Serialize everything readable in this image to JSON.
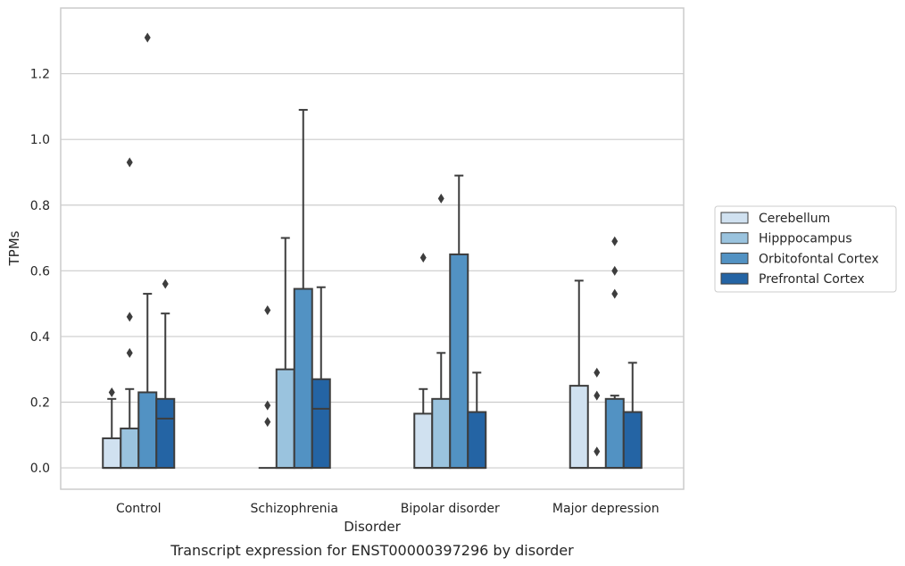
{
  "chart_data": {
    "type": "box",
    "title": "",
    "caption": "Transcript expression for ENST00000397296 by disorder",
    "xlabel": "Disorder",
    "ylabel": "TPMs",
    "ylim": [
      -0.065,
      1.4
    ],
    "y_ticks": [
      0.0,
      0.2,
      0.4,
      0.6,
      0.8,
      1.0,
      1.2
    ],
    "y_tick_labels": [
      "0.0",
      "0.2",
      "0.4",
      "0.6",
      "0.8",
      "1.0",
      "1.2"
    ],
    "grid": "horizontal",
    "legend_position": "right",
    "categories": [
      "Control",
      "Schizophrenia",
      "Bipolar disorder",
      "Major depression"
    ],
    "series": [
      {
        "name": "Cerebellum",
        "color": "#d0e1f0",
        "boxes": [
          {
            "q1": 0.0,
            "median": 0.0,
            "q3": 0.09,
            "whisker_low": 0.0,
            "whisker_high": 0.21,
            "outliers": [
              0.23
            ]
          },
          {
            "q1": 0.0,
            "median": 0.0,
            "q3": 0.0,
            "whisker_low": 0.0,
            "whisker_high": 0.0,
            "outliers": [
              0.48,
              0.19,
              0.14
            ]
          },
          {
            "q1": 0.0,
            "median": 0.0,
            "q3": 0.165,
            "whisker_low": 0.0,
            "whisker_high": 0.24,
            "outliers": [
              0.64
            ]
          },
          {
            "q1": 0.0,
            "median": 0.0,
            "q3": 0.25,
            "whisker_low": 0.0,
            "whisker_high": 0.57,
            "outliers": []
          }
        ]
      },
      {
        "name": "Hipppocampus",
        "color": "#9ac3de",
        "boxes": [
          {
            "q1": 0.0,
            "median": 0.0,
            "q3": 0.12,
            "whisker_low": 0.0,
            "whisker_high": 0.24,
            "outliers": [
              0.35,
              0.46,
              0.93
            ]
          },
          {
            "q1": 0.0,
            "median": 0.0,
            "q3": 0.3,
            "whisker_low": 0.0,
            "whisker_high": 0.7,
            "outliers": []
          },
          {
            "q1": 0.0,
            "median": 0.0,
            "q3": 0.21,
            "whisker_low": 0.0,
            "whisker_high": 0.35,
            "outliers": [
              0.82
            ]
          },
          {
            "q1": 0.0,
            "median": 0.0,
            "q3": 0.0,
            "whisker_low": 0.0,
            "whisker_high": 0.0,
            "outliers": [
              0.05,
              0.22,
              0.29
            ]
          }
        ]
      },
      {
        "name": "Orbitofontal Cortex",
        "color": "#5292c3",
        "boxes": [
          {
            "q1": 0.0,
            "median": 0.0,
            "q3": 0.23,
            "whisker_low": 0.0,
            "whisker_high": 0.53,
            "outliers": [
              1.31
            ]
          },
          {
            "q1": 0.0,
            "median": 0.0,
            "q3": 0.545,
            "whisker_low": 0.0,
            "whisker_high": 1.09,
            "outliers": []
          },
          {
            "q1": 0.0,
            "median": 0.0,
            "q3": 0.65,
            "whisker_low": 0.0,
            "whisker_high": 0.89,
            "outliers": []
          },
          {
            "q1": 0.0,
            "median": 0.0,
            "q3": 0.21,
            "whisker_low": 0.0,
            "whisker_high": 0.22,
            "outliers": [
              0.53,
              0.6,
              0.69
            ]
          }
        ]
      },
      {
        "name": "Prefrontal Cortex",
        "color": "#2464a4",
        "boxes": [
          {
            "q1": 0.0,
            "median": 0.15,
            "q3": 0.21,
            "whisker_low": 0.0,
            "whisker_high": 0.47,
            "outliers": [
              0.56
            ]
          },
          {
            "q1": 0.0,
            "median": 0.18,
            "q3": 0.27,
            "whisker_low": 0.0,
            "whisker_high": 0.55,
            "outliers": []
          },
          {
            "q1": 0.0,
            "median": 0.0,
            "q3": 0.17,
            "whisker_low": 0.0,
            "whisker_high": 0.29,
            "outliers": []
          },
          {
            "q1": 0.0,
            "median": 0.0,
            "q3": 0.17,
            "whisker_low": 0.0,
            "whisker_high": 0.32,
            "outliers": []
          }
        ]
      }
    ]
  }
}
